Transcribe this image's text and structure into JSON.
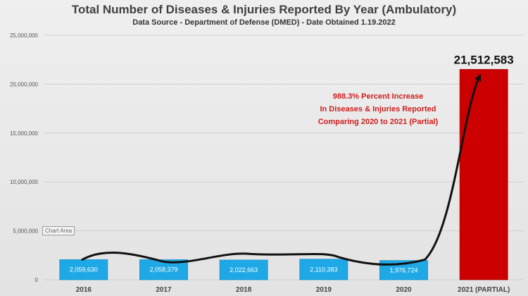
{
  "header": {
    "title": "Total Number of Diseases & Injuries Reported By Year (Ambulatory)",
    "subtitle": "Data Source - Department of Defense (DMED) - Date Obtained 1.19.2022"
  },
  "badge": "Chart Area",
  "annotation": {
    "lines": [
      "988.3% Percent Increase",
      "In Diseases & Injuries Reported",
      "Comparing 2020 to 2021 (Partial)"
    ]
  },
  "colors": {
    "bar": "#1fa8e6",
    "highlight_bar": "#cc0000",
    "annotation": "#d21c1c",
    "grid": "#cfcfcf"
  },
  "chart_data": {
    "type": "bar",
    "categories": [
      "2016",
      "2017",
      "2018",
      "2019",
      "2020",
      "2021 (PARTIAL)"
    ],
    "values": [
      2059630,
      2058379,
      2022663,
      2110383,
      1976724,
      21512583
    ],
    "data_labels": [
      "2,059,630",
      "2,058,379",
      "2,022,663",
      "2,110,383",
      "1,976,724",
      "21,512,583"
    ],
    "y_ticks": [
      0,
      5000000,
      10000000,
      15000000,
      20000000,
      25000000
    ],
    "y_tick_labels": [
      "0",
      "5,000,000",
      "10,000,000",
      "15,000,000",
      "20,000,000",
      "25,000,000"
    ],
    "ylim": [
      0,
      25000000
    ],
    "grid": true,
    "legend": "none",
    "highlight_index": 5
  }
}
